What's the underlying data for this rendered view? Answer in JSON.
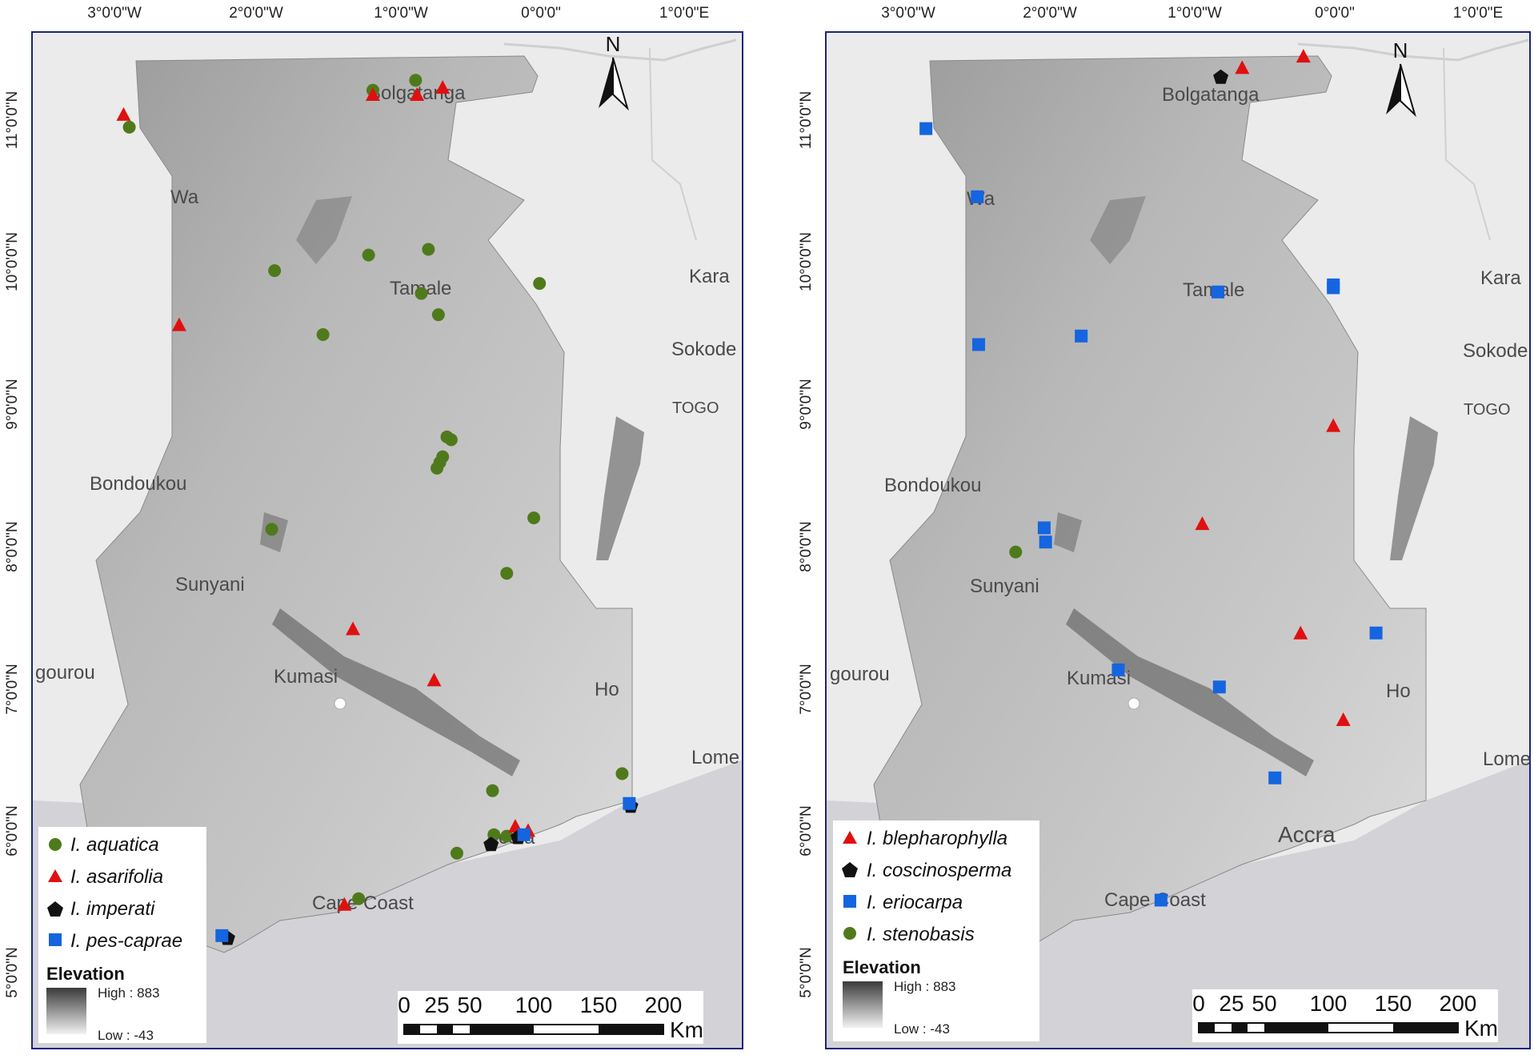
{
  "maps": [
    {
      "id": "left",
      "top_ticks": [
        "3°0'0\"W",
        "2°0'0\"W",
        "1°0'0\"W",
        "0°0'0\"",
        "1°0'0\"E"
      ],
      "left_ticks": [
        "11°0'0\"N",
        "10°0'0\"N",
        "9°0'0\"N",
        "8°0'0\"N",
        "7°0'0\"N",
        "6°0'0\"N",
        "5°0'0\"N"
      ],
      "places": [
        "Bolgatanga",
        "Wa",
        "Tamale",
        "Kara",
        "Sokode",
        "TOGO",
        "Bondoukou",
        "Sunyani",
        "Kumasi",
        "gourou",
        "Ho",
        "Lome",
        "Accra",
        "Cape Coast"
      ],
      "legend": [
        "I. aquatica",
        "I. asarifolia",
        "I. imperati",
        "I. pes-caprae"
      ],
      "elevation_title": "Elevation",
      "elevation_high": "High : 883",
      "elevation_low": "Low : -43",
      "scale_labels": [
        "0",
        "25",
        "50",
        "100",
        "150",
        "200"
      ],
      "scale_unit": "Km",
      "north": "N",
      "points": {
        "I. aquatica": [
          [
            -0.88,
            11.28
          ],
          [
            -1.18,
            11.21
          ],
          [
            -2.89,
            10.95
          ],
          [
            -0.79,
            10.09
          ],
          [
            -1.21,
            10.05
          ],
          [
            -1.87,
            9.94
          ],
          [
            -0.01,
            9.85
          ],
          [
            -0.84,
            9.78
          ],
          [
            -0.72,
            9.63
          ],
          [
            -1.53,
            9.49
          ],
          [
            -0.66,
            8.77
          ],
          [
            -0.63,
            8.75
          ],
          [
            -0.69,
            8.63
          ],
          [
            -0.71,
            8.59
          ],
          [
            -0.73,
            8.55
          ],
          [
            -0.05,
            8.2
          ],
          [
            -1.89,
            8.12
          ],
          [
            -0.24,
            7.81
          ],
          [
            0.57,
            6.4
          ],
          [
            -0.34,
            6.28
          ],
          [
            -0.33,
            5.97
          ],
          [
            -0.24,
            5.96
          ],
          [
            -0.59,
            5.84
          ],
          [
            -1.28,
            5.52
          ]
        ],
        "I. asarifolia": [
          [
            -0.69,
            11.23
          ],
          [
            -0.87,
            11.18
          ],
          [
            -1.18,
            11.18
          ],
          [
            -2.93,
            11.04
          ],
          [
            -2.54,
            9.56
          ],
          [
            -1.32,
            7.42
          ],
          [
            -0.75,
            7.06
          ],
          [
            -0.18,
            6.03
          ],
          [
            -0.09,
            6.0
          ],
          [
            -1.38,
            5.48
          ]
        ],
        "I. imperati": [
          [
            -0.35,
            5.9
          ],
          [
            -0.16,
            5.95
          ],
          [
            0.63,
            6.17
          ],
          [
            -2.2,
            5.24
          ]
        ],
        "I. pes-caprae": [
          [
            -0.12,
            5.97
          ],
          [
            0.62,
            6.19
          ],
          [
            -2.24,
            5.26
          ]
        ]
      }
    },
    {
      "id": "right",
      "top_ticks": [
        "3°0'0\"W",
        "2°0'0\"W",
        "1°0'0\"W",
        "0°0'0\"",
        "1°0'0\"E"
      ],
      "left_ticks": [
        "11°0'0\"N",
        "10°0'0\"N",
        "9°0'0\"N",
        "8°0'0\"N",
        "7°0'0\"N",
        "6°0'0\"N",
        "5°0'0\"N"
      ],
      "places": [
        "Bolgatanga",
        "Wa",
        "Tamale",
        "Kara",
        "Sokode",
        "TOGO",
        "Bondoukou",
        "Sunyani",
        "Kumasi",
        "gourou",
        "Ho",
        "Lome",
        "Accra",
        "Cape Coast"
      ],
      "legend": [
        "I. blepharophylla",
        "I. coscinosperma",
        "I. eriocarpa",
        "I. stenobasis"
      ],
      "elevation_title": "Elevation",
      "elevation_high": "High : 883",
      "elevation_low": "Low : -43",
      "scale_labels": [
        "0",
        "25",
        "50",
        "100",
        "150",
        "200"
      ],
      "scale_unit": "Km",
      "north": "N",
      "points": {
        "I. blepharophylla": [
          [
            -0.65,
            11.37
          ],
          [
            -0.22,
            11.45
          ],
          [
            -0.01,
            8.85
          ],
          [
            -0.93,
            8.16
          ],
          [
            -0.24,
            7.39
          ],
          [
            0.06,
            6.78
          ]
        ],
        "I. coscinosperma": [
          [
            -0.8,
            11.3
          ]
        ],
        "I. eriocarpa": [
          [
            -2.87,
            10.94
          ],
          [
            -2.51,
            10.46
          ],
          [
            -0.82,
            9.79
          ],
          [
            -0.01,
            9.84
          ],
          [
            -0.01,
            9.82
          ],
          [
            -2.5,
            9.42
          ],
          [
            -1.78,
            9.48
          ],
          [
            -2.04,
            8.13
          ],
          [
            -2.03,
            8.03
          ],
          [
            0.29,
            7.39
          ],
          [
            -1.52,
            7.13
          ],
          [
            -0.81,
            7.01
          ],
          [
            -0.42,
            6.37
          ],
          [
            -1.22,
            5.51
          ]
        ],
        "I. stenobasis": [
          [
            -2.24,
            7.96
          ]
        ]
      }
    }
  ]
}
